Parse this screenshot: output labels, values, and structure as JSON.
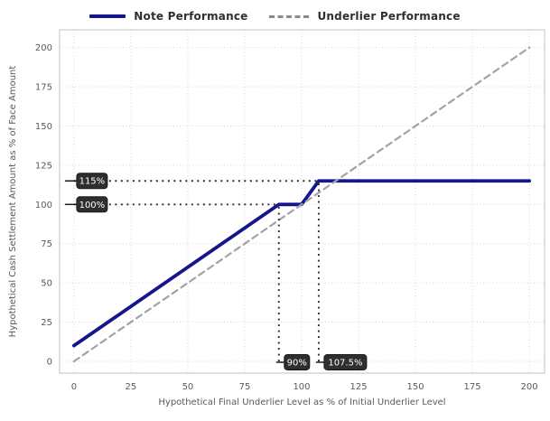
{
  "legend": {
    "items": [
      {
        "label": "Note Performance",
        "color": "#16168c",
        "style": "solid"
      },
      {
        "label": "Underlier Performance",
        "color": "#8a8a8a",
        "style": "dashed"
      }
    ]
  },
  "chart_data": {
    "type": "line",
    "title": "",
    "xlabel": "Hypothetical Final Underlier Level as % of Initial Underlier Level",
    "ylabel": "Hypothetical Cash Settlement Amount as % of Face Amount",
    "xlim": [
      -6.3,
      206.7
    ],
    "ylim": [
      -7.5,
      211.3
    ],
    "xticks": [
      0,
      25,
      50,
      75,
      100,
      125,
      150,
      175,
      200
    ],
    "yticks": [
      0,
      25,
      50,
      75,
      100,
      125,
      150,
      175,
      200
    ],
    "grid": true,
    "legend_position": "top-center",
    "series": [
      {
        "name": "Note Performance",
        "color": "#16168c",
        "style": "solid",
        "width": 3.8,
        "points": [
          [
            0,
            10
          ],
          [
            90,
            100
          ],
          [
            100,
            100
          ],
          [
            107.5,
            115
          ],
          [
            200,
            115
          ]
        ]
      },
      {
        "name": "Underlier Performance",
        "color": "#a3a3a3",
        "style": "dashed",
        "width": 2.2,
        "points": [
          [
            0,
            0
          ],
          [
            200,
            200
          ]
        ]
      }
    ],
    "guides": [
      {
        "orient": "h",
        "level": 115,
        "from": 0,
        "to": 107.5
      },
      {
        "orient": "h",
        "level": 100,
        "from": 0,
        "to": 90
      },
      {
        "orient": "v",
        "level": 90,
        "from": 0,
        "to": 100
      },
      {
        "orient": "v",
        "level": 107.5,
        "from": 0,
        "to": 115
      }
    ],
    "annotations": [
      {
        "label": "115%",
        "axis": "y",
        "value": 115
      },
      {
        "label": "100%",
        "axis": "y",
        "value": 100
      },
      {
        "label": "90%",
        "axis": "x",
        "value": 90
      },
      {
        "label": "107.5%",
        "axis": "x",
        "value": 107.5
      }
    ]
  },
  "colors": {
    "note_line": "#16168c",
    "underlier_line": "#a3a3a3",
    "guide_dots": "#26262e",
    "grid": "#d7d7d7",
    "spine": "#c2c2c2",
    "tick_label": "#595959",
    "axis_title": "#595959",
    "legend_text": "#2f2f2f",
    "annotation_bg": "#2e2e2e",
    "annotation_border": "#1a1a1a",
    "annotation_text": "#ffffff",
    "annotation_leader": "#1a1a1a"
  }
}
